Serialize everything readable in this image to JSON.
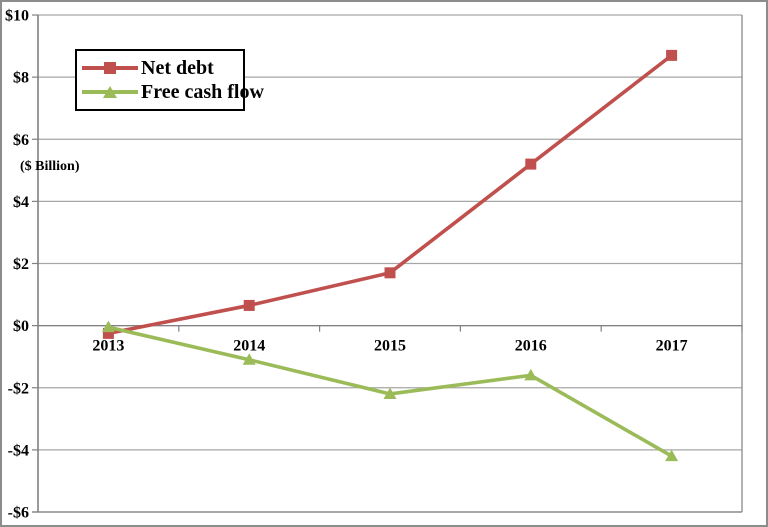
{
  "axis_title": "($ Billion)",
  "chart_data": {
    "type": "line",
    "categories": [
      "2013",
      "2014",
      "2015",
      "2016",
      "2017"
    ],
    "series": [
      {
        "name": "Net debt",
        "color": "#C0504D",
        "marker": "square",
        "values": [
          -0.25,
          0.65,
          1.7,
          5.2,
          8.7
        ]
      },
      {
        "name": "Free cash flow",
        "color": "#9BBB59",
        "marker": "triangle",
        "values": [
          -0.05,
          -1.1,
          -2.2,
          -1.6,
          -4.2
        ]
      }
    ],
    "ylabel": "($ Billion)",
    "ylim": [
      -6,
      10
    ],
    "ytick_step": 2,
    "ytick_labels": [
      "$10",
      "$8",
      "$6",
      "$4",
      "$2",
      "$0",
      "-$2",
      "-$4",
      "-$6"
    ],
    "grid": true,
    "legend_position": "top-left",
    "colors": {
      "gridline": "#A6A6A6",
      "axis": "#808080",
      "text": "#000000",
      "plot_background": "#FFFFFF"
    }
  }
}
